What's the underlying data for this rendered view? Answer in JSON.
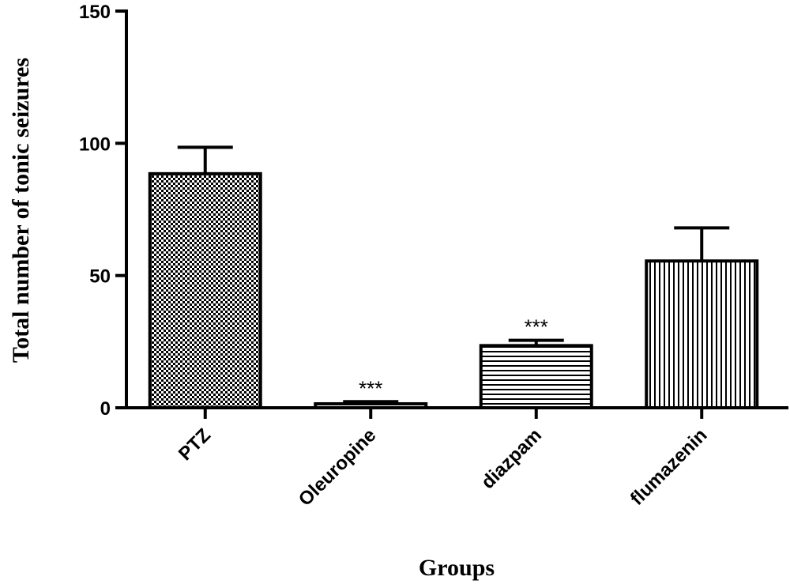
{
  "chart_data": {
    "type": "bar",
    "categories": [
      "PTZ",
      "Oleuropine",
      "diazpam",
      "flumazenin"
    ],
    "values": [
      88.5,
      1.5,
      23.5,
      55.5
    ],
    "error_upper": [
      98.5,
      2.3,
      25.5,
      68.0
    ],
    "significance": [
      "",
      "***",
      "***",
      ""
    ],
    "patterns": [
      "checker",
      "none",
      "horizontal-lines",
      "vertical-lines"
    ],
    "xlabel": "Groups",
    "ylabel": "Total number of tonic seizures",
    "ylim": [
      0,
      150
    ],
    "yticks": [
      0,
      50,
      100,
      150
    ],
    "grid": false,
    "colors": {
      "bar_outline": "#000000",
      "fill": "#ffffff",
      "pattern": "#000000"
    }
  }
}
